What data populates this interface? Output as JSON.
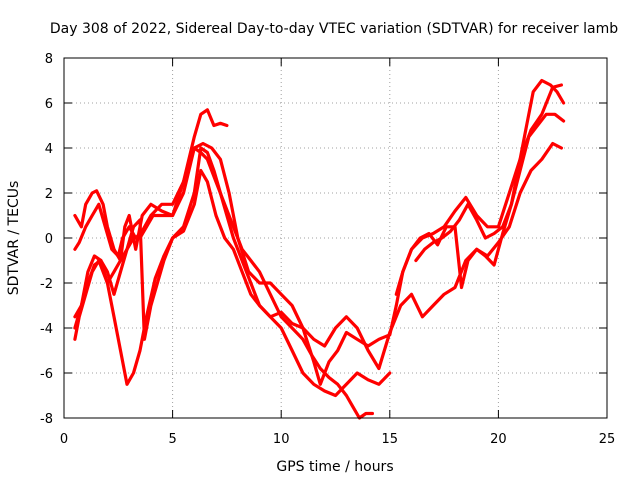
{
  "chart_data": {
    "type": "scatter",
    "title": "Day 308 of 2022, Sidereal Day-to-day VTEC variation (SDTVAR) for receiver lamb",
    "xlabel": "GPS time / hours",
    "ylabel": "SDTVAR / TECUs",
    "xlim": [
      0,
      25
    ],
    "ylim": [
      -8,
      8
    ],
    "xticks": [
      0,
      5,
      10,
      15,
      20,
      25
    ],
    "yticks": [
      -8,
      -6,
      -4,
      -2,
      0,
      2,
      4,
      6,
      8
    ],
    "xtick_labels": [
      "0",
      "5",
      "10",
      "15",
      "20",
      "25"
    ],
    "ytick_labels": [
      "-8",
      "-6",
      "-4",
      "-2",
      "0",
      "2",
      "4",
      "6",
      "8"
    ],
    "grid": true,
    "marker": "+",
    "color": "#ff0000",
    "series": [
      {
        "x": [
          0.5,
          0.8,
          1.0,
          1.3,
          1.5,
          1.8,
          2.0,
          2.3,
          2.6,
          2.8,
          3.0,
          3.3,
          3.6,
          4.0,
          4.5,
          5.0,
          5.5,
          6.0,
          6.3,
          6.6,
          6.9,
          7.2,
          7.5
        ],
        "y": [
          1.0,
          0.5,
          1.5,
          2.0,
          2.1,
          1.5,
          0.5,
          -0.5,
          -1.0,
          0.5,
          1.0,
          -0.5,
          1.0,
          1.5,
          1.2,
          1.0,
          2.5,
          4.5,
          5.5,
          5.7,
          5.0,
          5.1,
          5.0
        ]
      },
      {
        "x": [
          0.5,
          0.7,
          1.0,
          1.3,
          1.6,
          1.9,
          2.2,
          2.5,
          2.7,
          3.0,
          3.3,
          3.6,
          4.0,
          4.5,
          5.0,
          5.5,
          6.0,
          6.4,
          6.8,
          7.2,
          7.6,
          8.0,
          8.5,
          9.0,
          9.5,
          10.0,
          10.5,
          11.0,
          11.5,
          11.8,
          12.2,
          12.6,
          13.0,
          13.5,
          14.0,
          14.5,
          15.0,
          15.3,
          15.6,
          16.0,
          16.5,
          17.0,
          17.5,
          18.0,
          18.5,
          19.0,
          19.5,
          20.0,
          20.5,
          21.0,
          21.5,
          22.0,
          22.5,
          22.9
        ],
        "y": [
          -0.5,
          -0.2,
          0.5,
          1.0,
          1.5,
          0.5,
          -0.5,
          -0.8,
          0.0,
          0.5,
          0.0,
          0.3,
          1.0,
          1.5,
          1.5,
          2.5,
          4.0,
          4.2,
          4.0,
          3.5,
          2.0,
          0.0,
          -1.5,
          -2.0,
          -2.0,
          -2.5,
          -3.0,
          -4.0,
          -5.5,
          -6.5,
          -5.5,
          -5.0,
          -4.2,
          -4.5,
          -4.8,
          -4.5,
          -4.3,
          -3.0,
          -1.5,
          -0.5,
          0.0,
          0.2,
          0.5,
          1.2,
          1.8,
          1.0,
          0.5,
          0.5,
          2.0,
          3.5,
          4.8,
          5.5,
          6.7,
          6.8
        ]
      },
      {
        "x": [
          0.5,
          0.7,
          1.0,
          1.3,
          1.6,
          2.0,
          2.3,
          2.6,
          2.9,
          3.2,
          3.5,
          3.8,
          4.2,
          4.6,
          5.0,
          5.5,
          6.0,
          6.3,
          6.6,
          7.0,
          7.4,
          7.8,
          8.2,
          8.6,
          9.0,
          9.5,
          10.0,
          10.5,
          11.0,
          11.5,
          12.0,
          12.5,
          13.0,
          13.5,
          14.0,
          14.5,
          15.0
        ],
        "y": [
          -4.5,
          -3.5,
          -2.5,
          -1.5,
          -1.0,
          -2.0,
          -3.5,
          -5.0,
          -6.5,
          -6.0,
          -5.0,
          -3.5,
          -1.8,
          -0.8,
          0.0,
          0.3,
          1.5,
          3.0,
          2.5,
          1.0,
          0.0,
          -0.5,
          -1.5,
          -2.5,
          -3.0,
          -3.5,
          -4.0,
          -5.0,
          -6.0,
          -6.5,
          -6.8,
          -7.0,
          -6.5,
          -6.0,
          -6.3,
          -6.5,
          -6.0
        ]
      },
      {
        "x": [
          0.5,
          0.8,
          1.1,
          1.4,
          1.7,
          2.0,
          2.3,
          2.6,
          2.9,
          3.2,
          3.5,
          3.8,
          4.1,
          4.5,
          5.0,
          5.5,
          6.0,
          6.3,
          6.6,
          7.0,
          7.4,
          7.8,
          8.2,
          8.6,
          9.0,
          9.5,
          10.0,
          10.5,
          11.0,
          11.4,
          11.8,
          12.2,
          12.6,
          13.0,
          13.3,
          13.6,
          13.9,
          14.2
        ],
        "y": [
          -4.0,
          -3.0,
          -1.5,
          -0.8,
          -1.0,
          -2.0,
          -1.5,
          -1.0,
          -0.5,
          0.0,
          0.0,
          0.5,
          1.0,
          1.0,
          1.0,
          2.0,
          4.0,
          3.8,
          3.5,
          2.5,
          1.5,
          0.5,
          -0.5,
          -1.0,
          -1.5,
          -2.5,
          -3.5,
          -4.0,
          -4.5,
          -5.2,
          -5.8,
          -6.2,
          -6.5,
          -7.0,
          -7.5,
          -8.0,
          -7.8,
          -7.8
        ]
      },
      {
        "x": [
          0.5,
          0.8,
          1.1,
          1.4,
          1.7,
          2.0,
          2.3,
          2.6,
          2.9,
          3.2,
          3.5,
          3.7,
          4.0,
          4.3,
          4.6,
          5.0,
          5.5,
          6.0,
          6.3,
          6.6,
          6.9,
          7.2,
          7.5,
          7.8,
          8.2,
          8.6,
          9.0,
          9.5,
          10.0,
          10.5,
          11.0,
          11.5,
          12.0,
          12.5,
          13.0,
          13.5,
          14.0,
          14.5,
          15.0,
          15.5,
          16.0,
          16.5,
          17.0,
          17.5,
          18.0,
          18.5,
          19.0,
          19.5,
          20.0,
          20.5,
          21.0,
          21.5,
          22.0,
          22.5,
          22.9
        ],
        "y": [
          -3.5,
          -3.0,
          -2.0,
          -1.2,
          -1.0,
          -1.5,
          -2.5,
          -1.5,
          -0.5,
          0.5,
          0.8,
          -4.5,
          -3.0,
          -2.0,
          -1.0,
          0.0,
          0.5,
          2.0,
          4.0,
          3.8,
          3.0,
          2.0,
          1.0,
          0.0,
          -1.0,
          -2.0,
          -3.0,
          -3.5,
          -3.3,
          -3.8,
          -4.0,
          -4.5,
          -4.8,
          -4.0,
          -3.5,
          -4.0,
          -5.0,
          -5.8,
          -4.2,
          -3.0,
          -2.5,
          -3.5,
          -3.0,
          -2.5,
          -2.2,
          -1.0,
          -0.5,
          -0.8,
          -0.2,
          0.5,
          2.0,
          3.0,
          3.5,
          4.2,
          4.0
        ]
      },
      {
        "x": [
          15.3,
          15.6,
          16.0,
          16.4,
          16.8,
          17.2,
          17.6,
          18.0,
          18.3,
          18.6,
          19.0,
          19.4,
          19.8,
          20.2,
          20.6,
          21.0,
          21.3,
          21.6,
          22.0,
          22.4,
          22.7,
          23.0
        ],
        "y": [
          -2.5,
          -1.5,
          -0.5,
          0.0,
          0.2,
          -0.3,
          0.5,
          0.5,
          -2.2,
          -1.0,
          -0.5,
          -0.8,
          -1.2,
          0.2,
          1.5,
          3.5,
          5.0,
          6.5,
          7.0,
          6.8,
          6.5,
          6.0
        ]
      },
      {
        "x": [
          16.2,
          16.6,
          17.0,
          17.4,
          17.8,
          18.2,
          18.6,
          19.0,
          19.4,
          19.8,
          20.2,
          20.6,
          21.0,
          21.4,
          21.8,
          22.2,
          22.6,
          23.0
        ],
        "y": [
          -1.0,
          -0.5,
          -0.2,
          0.0,
          0.3,
          0.8,
          1.5,
          0.8,
          0.0,
          0.2,
          0.5,
          1.5,
          3.0,
          4.5,
          5.0,
          5.5,
          5.5,
          5.2
        ]
      }
    ]
  }
}
